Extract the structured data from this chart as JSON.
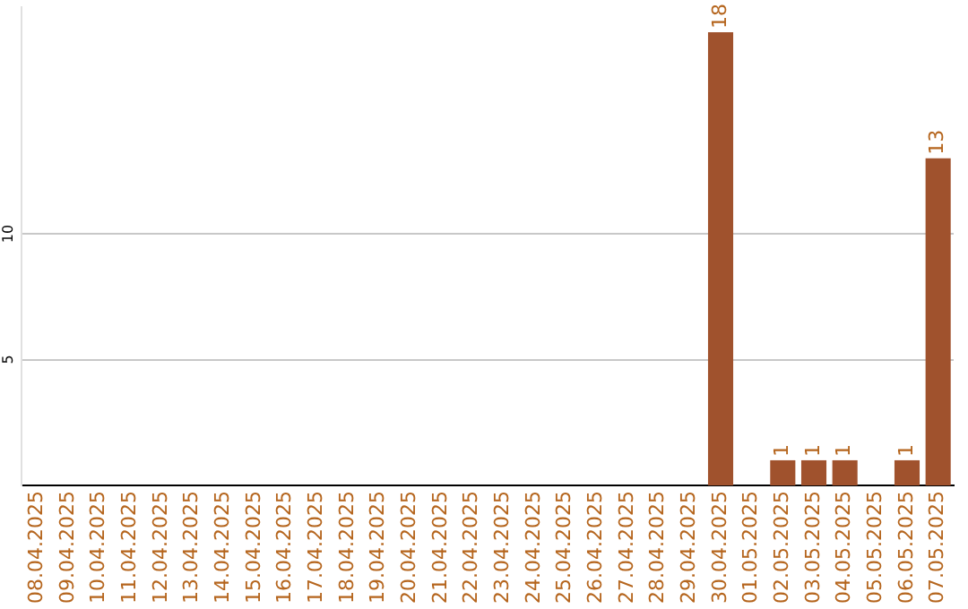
{
  "chart_data": {
    "type": "bar",
    "categories": [
      "08.04.2025",
      "09.04.2025",
      "10.04.2025",
      "11.04.2025",
      "12.04.2025",
      "13.04.2025",
      "14.04.2025",
      "15.04.2025",
      "16.04.2025",
      "17.04.2025",
      "18.04.2025",
      "19.04.2025",
      "20.04.2025",
      "21.04.2025",
      "22.04.2025",
      "23.04.2025",
      "24.04.2025",
      "25.04.2025",
      "26.04.2025",
      "27.04.2025",
      "28.04.2025",
      "29.04.2025",
      "30.04.2025",
      "01.05.2025",
      "02.05.2025",
      "03.05.2025",
      "04.05.2025",
      "05.05.2025",
      "06.05.2025",
      "07.05.2025"
    ],
    "values": [
      0,
      0,
      0,
      0,
      0,
      0,
      0,
      0,
      0,
      0,
      0,
      0,
      0,
      0,
      0,
      0,
      0,
      0,
      0,
      0,
      0,
      0,
      18,
      0,
      1,
      1,
      1,
      0,
      1,
      13
    ],
    "value_labels": [
      null,
      null,
      null,
      null,
      null,
      null,
      null,
      null,
      null,
      null,
      null,
      null,
      null,
      null,
      null,
      null,
      null,
      null,
      null,
      null,
      null,
      null,
      "18",
      null,
      "1",
      "1",
      "1",
      null,
      "1",
      "13"
    ],
    "color": "#a0522d",
    "ylim": [
      0,
      19
    ],
    "yticks": [
      5,
      10
    ],
    "grid": "y",
    "legend": false
  }
}
